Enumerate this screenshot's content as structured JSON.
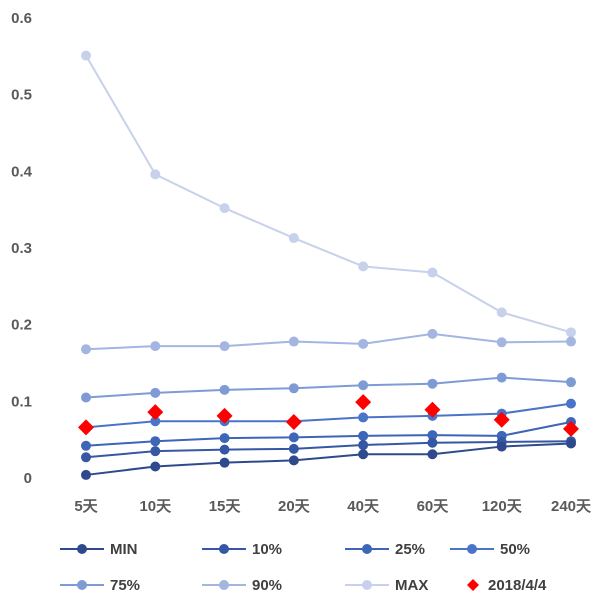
{
  "chart_data": {
    "type": "line",
    "categories": [
      "5天",
      "10天",
      "15天",
      "20天",
      "40天",
      "60天",
      "120天",
      "240天"
    ],
    "ylim": [
      0,
      0.6
    ],
    "yticks": [
      "0",
      "0.1",
      "0.2",
      "0.3",
      "0.4",
      "0.5",
      "0.6"
    ],
    "grid": false,
    "legend_position": "bottom",
    "series": [
      {
        "name": "MIN",
        "color": "#2e4a8c",
        "marker": "circle",
        "values": [
          0.004,
          0.015,
          0.02,
          0.023,
          0.031,
          0.031,
          0.041,
          0.045
        ]
      },
      {
        "name": "10%",
        "color": "#3557a4",
        "marker": "circle",
        "values": [
          0.027,
          0.035,
          0.037,
          0.038,
          0.043,
          0.046,
          0.047,
          0.048
        ]
      },
      {
        "name": "25%",
        "color": "#3d65b8",
        "marker": "circle",
        "values": [
          0.042,
          0.048,
          0.052,
          0.053,
          0.055,
          0.056,
          0.055,
          0.073
        ]
      },
      {
        "name": "50%",
        "color": "#4a74c9",
        "marker": "circle",
        "values": [
          0.066,
          0.074,
          0.074,
          0.074,
          0.079,
          0.081,
          0.084,
          0.097
        ]
      },
      {
        "name": "75%",
        "color": "#7f9bd6",
        "marker": "circle",
        "values": [
          0.105,
          0.111,
          0.115,
          0.117,
          0.121,
          0.123,
          0.131,
          0.125
        ]
      },
      {
        "name": "90%",
        "color": "#a3b5e0",
        "marker": "circle",
        "values": [
          0.168,
          0.172,
          0.172,
          0.178,
          0.175,
          0.188,
          0.177,
          0.178
        ]
      },
      {
        "name": "MAX",
        "color": "#c7d1ec",
        "marker": "circle",
        "values": [
          0.551,
          0.396,
          0.352,
          0.313,
          0.276,
          0.268,
          0.216,
          0.19
        ]
      },
      {
        "name": "2018/4/4",
        "color": "#ff0000",
        "marker": "diamond",
        "line": false,
        "values": [
          0.066,
          0.086,
          0.081,
          0.073,
          0.099,
          0.089,
          0.076,
          0.064
        ]
      }
    ]
  }
}
